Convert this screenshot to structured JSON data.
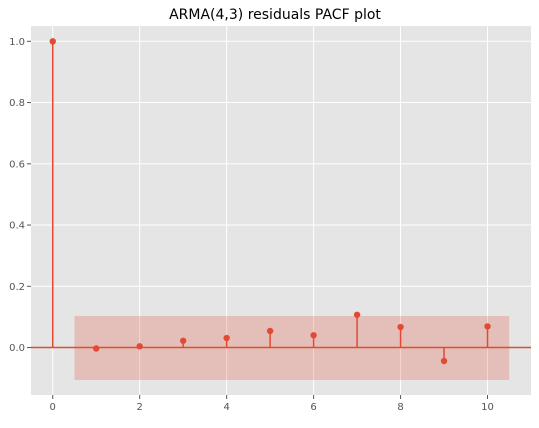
{
  "chart_data": {
    "type": "stem",
    "title": "ARMA(4,3) residuals PACF plot",
    "xlabel": "",
    "ylabel": "",
    "x": [
      0,
      1,
      2,
      3,
      4,
      5,
      6,
      7,
      8,
      9,
      10
    ],
    "values": [
      1.0,
      -0.003,
      0.004,
      0.022,
      0.031,
      0.054,
      0.04,
      0.107,
      0.067,
      -0.044,
      0.069
    ],
    "confidence_band": {
      "lower": -0.106,
      "upper": 0.103,
      "x_range": [
        0.5,
        10.5
      ]
    },
    "xlim": [
      -0.5,
      11.0
    ],
    "ylim": [
      -0.155,
      1.05
    ],
    "xticks": [
      "0",
      "2",
      "4",
      "6",
      "8",
      "10"
    ],
    "yticks": [
      "0.0",
      "0.2",
      "0.4",
      "0.6",
      "0.8",
      "1.0"
    ],
    "xtick_values": [
      0,
      2,
      4,
      6,
      8,
      10
    ],
    "ytick_values": [
      0.0,
      0.2,
      0.4,
      0.6,
      0.8,
      1.0
    ],
    "grid": true,
    "colors": {
      "marker": "#E24A33",
      "band": "#E24A33",
      "background": "#E5E5E5",
      "grid": "#FFFFFF"
    }
  }
}
